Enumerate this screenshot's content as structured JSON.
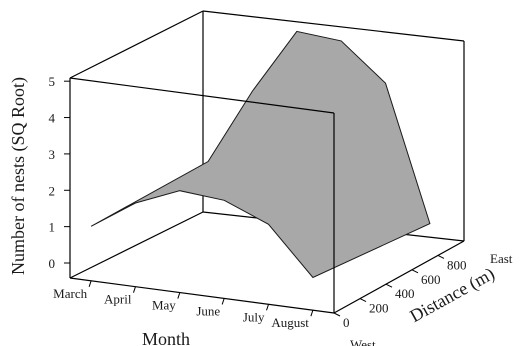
{
  "chart_data": {
    "type": "surface-3d",
    "title": "",
    "zlabel": "Number of nests (SQ Root)",
    "xlabel": "Month",
    "ylabel": "Distance (m)",
    "z_ticks": [
      "0",
      "1",
      "2",
      "3",
      "4",
      "5"
    ],
    "months": [
      "March",
      "April",
      "May",
      "June",
      "July",
      "August"
    ],
    "distance_ticks": [
      "0",
      "200",
      "400",
      "600",
      "800"
    ],
    "direction_labels": {
      "west": "West",
      "east": "East"
    },
    "zlim": [
      0,
      5.5
    ],
    "surface_fill": "#a8a8a8",
    "near_edge": {
      "distance_m": 0,
      "months": [
        "March",
        "April",
        "May",
        "June",
        "July",
        "August"
      ],
      "values": [
        1.5,
        2.3,
        2.8,
        2.7,
        2.2,
        0.9
      ]
    },
    "far_edge": {
      "distance_m": 900,
      "months": [
        "March",
        "April",
        "May",
        "June",
        "July",
        "August"
      ],
      "values": [
        1.5,
        3.6,
        5.4,
        5.3,
        4.3,
        0.6
      ]
    }
  }
}
